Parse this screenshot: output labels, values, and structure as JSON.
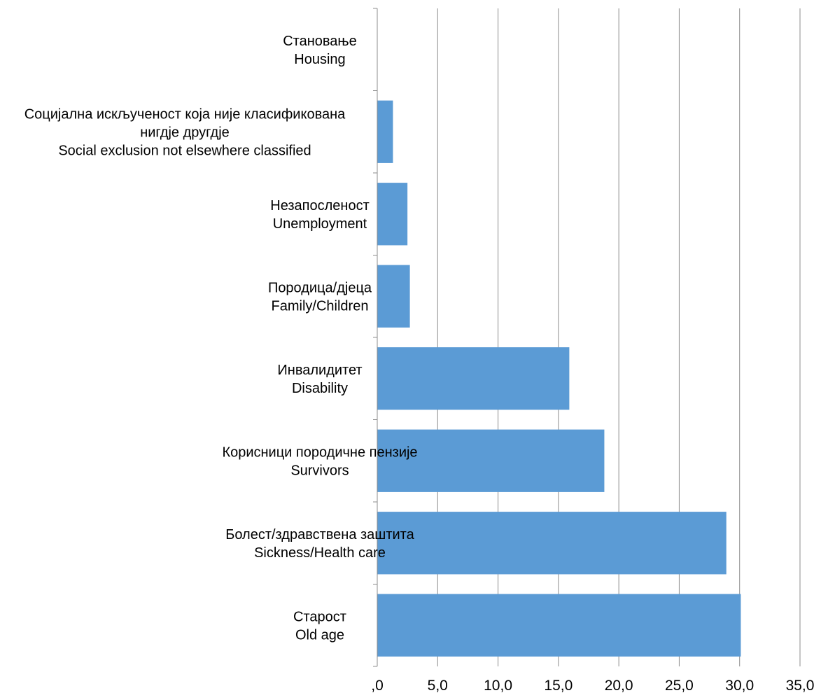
{
  "chart_data": {
    "type": "bar",
    "orientation": "horizontal",
    "categories": [
      [
        "Становање",
        "Housing"
      ],
      [
        "Социјална искљученост која није класификована",
        "нигдје другдје",
        "Social exclusion not elsewhere classified"
      ],
      [
        "Незапосленост",
        "Unemployment"
      ],
      [
        "Породица/дјеца",
        "Family/Children"
      ],
      [
        "Инвалидитет",
        "Disability"
      ],
      [
        "Корисници породичне пензије",
        "Survivors"
      ],
      [
        "Болест/здравствена заштита",
        "Sickness/Health care"
      ],
      [
        "Старост",
        "Old age"
      ]
    ],
    "values": [
      0,
      1.3,
      2.5,
      2.7,
      15.9,
      18.8,
      28.9,
      30.1
    ],
    "xlim": [
      0,
      35
    ],
    "xticks": [
      0,
      5,
      10,
      15,
      20,
      25,
      30,
      35
    ],
    "xtick_labels": [
      ",0",
      "5,0",
      "10,0",
      "15,0",
      "20,0",
      "25,0",
      "30,0",
      "35,0"
    ],
    "bar_color": "#5B9BD5",
    "grid": "vertical",
    "legend": "none",
    "title": "",
    "xlabel": "",
    "ylabel": ""
  }
}
